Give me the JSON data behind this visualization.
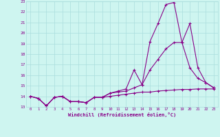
{
  "xlabel": "Windchill (Refroidissement éolien,°C)",
  "background_color": "#cef5f0",
  "grid_color": "#aadddd",
  "line_color": "#880088",
  "xlim": [
    -0.5,
    23.5
  ],
  "ylim": [
    13,
    23
  ],
  "xticks": [
    0,
    1,
    2,
    3,
    4,
    5,
    6,
    7,
    8,
    9,
    10,
    11,
    12,
    13,
    14,
    15,
    16,
    17,
    18,
    19,
    20,
    21,
    22,
    23
  ],
  "yticks": [
    13,
    14,
    15,
    16,
    17,
    18,
    19,
    20,
    21,
    22,
    23
  ],
  "series1_x": [
    0,
    1,
    2,
    3,
    4,
    5,
    6,
    7,
    8,
    9,
    10,
    11,
    12,
    13,
    14,
    15,
    16,
    17,
    18,
    19,
    20,
    21,
    22,
    23
  ],
  "series1_y": [
    14.0,
    13.8,
    13.1,
    13.9,
    14.0,
    13.5,
    13.5,
    13.4,
    13.9,
    13.9,
    14.3,
    14.5,
    14.7,
    16.5,
    15.1,
    19.2,
    20.9,
    22.7,
    22.9,
    19.1,
    20.9,
    16.7,
    15.3,
    14.8
  ],
  "series2_x": [
    0,
    1,
    2,
    3,
    4,
    5,
    6,
    7,
    8,
    9,
    10,
    11,
    12,
    13,
    14,
    15,
    16,
    17,
    18,
    19,
    20,
    21,
    22,
    23
  ],
  "series2_y": [
    14.0,
    13.8,
    13.1,
    13.9,
    14.0,
    13.5,
    13.5,
    13.4,
    13.9,
    13.9,
    14.3,
    14.4,
    14.5,
    14.8,
    15.1,
    16.5,
    17.5,
    18.5,
    19.1,
    19.1,
    16.7,
    15.7,
    15.3,
    14.8
  ],
  "series3_x": [
    0,
    1,
    2,
    3,
    4,
    5,
    6,
    7,
    8,
    9,
    10,
    11,
    12,
    13,
    14,
    15,
    16,
    17,
    18,
    19,
    20,
    21,
    22,
    23
  ],
  "series3_y": [
    14.0,
    13.8,
    13.1,
    13.9,
    14.0,
    13.5,
    13.5,
    13.4,
    13.9,
    13.9,
    14.0,
    14.1,
    14.2,
    14.3,
    14.4,
    14.4,
    14.5,
    14.55,
    14.6,
    14.65,
    14.65,
    14.7,
    14.7,
    14.7
  ]
}
